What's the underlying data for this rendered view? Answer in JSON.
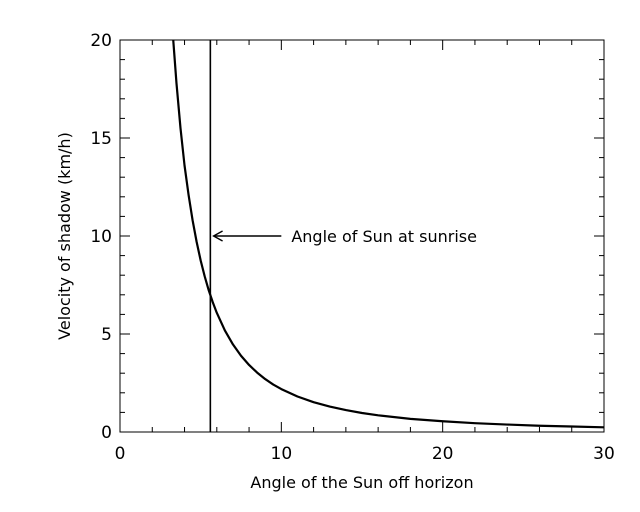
{
  "chart_data": {
    "type": "line",
    "title": "",
    "xlabel": "Angle of the Sun off horizon",
    "ylabel": "Velocity of shadow (km/h)",
    "xlim": [
      0,
      30
    ],
    "ylim": [
      0,
      20
    ],
    "x_ticks": [
      0,
      10,
      20,
      30
    ],
    "y_ticks": [
      0,
      5,
      10,
      15,
      20
    ],
    "x_tick_labels": [
      "0",
      "10",
      "20",
      "30"
    ],
    "y_tick_labels": [
      "0",
      "5",
      "10",
      "15",
      "20"
    ],
    "x_minor_step": 2,
    "y_minor_step": 1,
    "grid": false,
    "legend": "none",
    "series": [
      {
        "x": [
          3.3,
          3.5,
          3.75,
          4.0,
          4.25,
          4.5,
          4.75,
          5.0,
          5.25,
          5.5,
          5.75,
          6.0,
          6.5,
          7.0,
          7.5,
          8.0,
          8.5,
          9.0,
          9.5,
          10.0,
          11.0,
          12.0,
          13.0,
          14.0,
          15.0,
          16.0,
          18.0,
          20.0,
          22.0,
          24.0,
          26.0,
          28.0,
          30.0
        ],
        "y": [
          20.0,
          17.8,
          15.5,
          13.6,
          12.1,
          10.8,
          9.7,
          8.75,
          7.94,
          7.23,
          6.62,
          6.08,
          5.18,
          4.47,
          3.89,
          3.42,
          3.03,
          2.7,
          2.42,
          2.19,
          1.81,
          1.52,
          1.3,
          1.12,
          0.97,
          0.85,
          0.67,
          0.55,
          0.45,
          0.38,
          0.32,
          0.28,
          0.24
        ]
      }
    ],
    "vline": {
      "x": 5.6
    },
    "annotation": {
      "text": "Angle of Sun at sunrise",
      "arrow_to": [
        5.8,
        10
      ],
      "arrow_from": [
        10.0,
        10
      ]
    }
  }
}
